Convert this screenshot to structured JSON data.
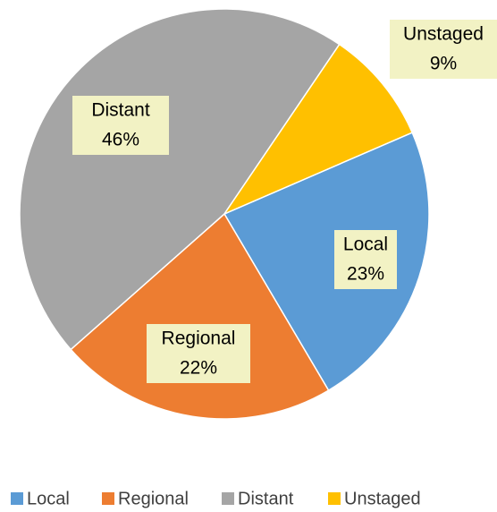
{
  "chart_data": {
    "type": "pie",
    "categories": [
      "Local",
      "Regional",
      "Distant",
      "Unstaged"
    ],
    "values": [
      23,
      22,
      46,
      9
    ],
    "value_labels": [
      "23%",
      "22%",
      "46%",
      "9%"
    ],
    "colors": [
      "#5b9bd5",
      "#ed7d31",
      "#a5a5a5",
      "#ffc000"
    ],
    "legend": "bottom"
  }
}
